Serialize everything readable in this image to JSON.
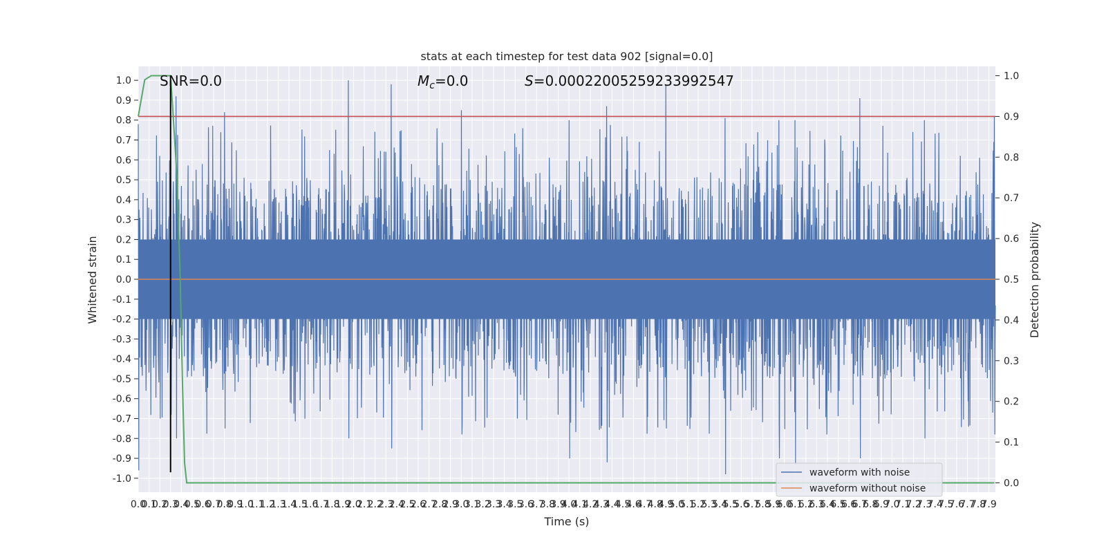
{
  "chart_data": {
    "type": "line",
    "title": "stats at each timestep for test data 902 [signal=0.0]",
    "xlabel": "Time (s)",
    "ylabel": "Whitened strain",
    "y2label": "Detection probability",
    "xlim": [
      0.0,
      7.96
    ],
    "ylim": [
      -1.07,
      1.07
    ],
    "y2lim": [
      -0.023,
      1.023
    ],
    "x_ticks": [
      0.0,
      0.1,
      0.2,
      0.3,
      0.4,
      0.5,
      0.6,
      0.7,
      0.8,
      0.9,
      1.0,
      1.1,
      1.2,
      1.3,
      1.4,
      1.5,
      1.6,
      1.7,
      1.8,
      1.9,
      2.0,
      2.1,
      2.2,
      2.3,
      2.4,
      2.5,
      2.6,
      2.7,
      2.8,
      2.9,
      3.0,
      3.1,
      3.2,
      3.3,
      3.4,
      3.5,
      3.6,
      3.7,
      3.8,
      3.9,
      4.0,
      4.1,
      4.2,
      4.3,
      4.4,
      4.5,
      4.6,
      4.7,
      4.8,
      4.9,
      5.0,
      5.1,
      5.2,
      5.3,
      5.4,
      5.5,
      5.6,
      5.7,
      5.8,
      5.9,
      6.0,
      6.1,
      6.2,
      6.3,
      6.4,
      6.5,
      6.6,
      6.7,
      6.8,
      6.9,
      7.0,
      7.1,
      7.2,
      7.3,
      7.4,
      7.5,
      7.6,
      7.7,
      7.8,
      7.9
    ],
    "x_tick_labels": [
      "0.0",
      "0.1",
      "0.2",
      "0.3",
      "0.4",
      "0.5",
      "0.6",
      "0.7",
      "0.8",
      "0.9",
      "1.0",
      "1.1",
      "1.2",
      "1.3",
      "1.4",
      "1.5",
      "1.6",
      "1.7",
      "1.8",
      "1.9",
      "2.0",
      "2.1",
      "2.2",
      "2.3",
      "2.4",
      "2.5",
      "2.6",
      "2.7",
      "2.8",
      "2.9",
      "3.0",
      "3.1",
      "3.2",
      "3.3",
      "3.4",
      "3.5",
      "3.6",
      "3.7",
      "3.8",
      "3.9",
      "4.0",
      "4.1",
      "4.2",
      "4.3",
      "4.4",
      "4.5",
      "4.6",
      "4.7",
      "4.8",
      "4.9",
      "5.0",
      "5.1",
      "5.2",
      "5.3",
      "5.4",
      "5.5",
      "5.6",
      "5.7",
      "5.8",
      "5.9",
      "6.0",
      "6.1",
      "6.2",
      "6.3",
      "6.4",
      "6.5",
      "6.6",
      "6.7",
      "6.8",
      "6.9",
      "7.0",
      "7.1",
      "7.2",
      "7.3",
      "7.4",
      "7.5",
      "7.6",
      "7.7",
      "7.8",
      "7.9"
    ],
    "y_ticks": [
      1.0,
      0.9,
      0.8,
      0.7,
      0.6,
      0.5,
      0.4,
      0.3,
      0.2,
      0.1,
      0.0,
      -0.1,
      -0.2,
      -0.3,
      -0.4,
      -0.5,
      -0.6,
      -0.7,
      -0.8,
      -0.9,
      -1.0
    ],
    "y_tick_labels": [
      "1.0",
      "0.9",
      "0.8",
      "0.7",
      "0.6",
      "0.5",
      "0.4",
      "0.3",
      "0.2",
      "0.1",
      "0.0",
      "-0.1",
      "-0.2",
      "-0.3",
      "-0.4",
      "-0.5",
      "-0.6",
      "-0.7",
      "-0.8",
      "-0.9",
      "-1.0"
    ],
    "y2_ticks": [
      1.0,
      0.9,
      0.8,
      0.7,
      0.6,
      0.5,
      0.4,
      0.3,
      0.2,
      0.1,
      0.0
    ],
    "y2_tick_labels": [
      "1.0",
      "0.9",
      "0.8",
      "0.7",
      "0.6",
      "0.5",
      "0.4",
      "0.3",
      "0.2",
      "0.1",
      "0.0"
    ],
    "grid": true,
    "legend_position": "bottom-right",
    "annotations": {
      "snr": "SNR=0.0",
      "mc_symbol": "M",
      "mc_sub": "c",
      "mc_value": "=0.0",
      "s_symbol": "S",
      "s_value": "=0.0002200525923399254​7"
    },
    "series": [
      {
        "name": "waveform with noise",
        "axis": "left",
        "color": "#4c72b0",
        "description_of_trace": "dense noise, band roughly -0.4 to 0.4 with spikes up to about ±1.0",
        "envelope_samples": {
          "x": [
            0.0,
            0.2,
            0.3,
            0.35,
            0.8,
            1.95,
            2.35,
            3.0,
            4.0,
            4.35,
            4.9,
            5.45,
            5.95,
            6.1,
            6.7,
            7.3,
            7.95
          ],
          "peak": [
            0.78,
            0.62,
            1.0,
            0.92,
            0.84,
            1.0,
            0.98,
            0.85,
            0.8,
            0.87,
            0.98,
            0.81,
            0.8,
            0.8,
            0.91,
            0.8,
            0.82
          ],
          "trough": [
            -0.96,
            -0.7,
            -0.68,
            -0.8,
            -0.75,
            -0.8,
            -0.85,
            -0.78,
            -0.9,
            -0.92,
            -0.75,
            -0.98,
            -0.9,
            -0.93,
            -0.9,
            -0.8,
            -0.78
          ]
        }
      },
      {
        "name": "waveform without noise",
        "axis": "left",
        "color": "#dd8452",
        "x": [
          0.0,
          7.96
        ],
        "y": [
          0.0,
          0.0
        ]
      },
      {
        "name": "",
        "axis": "right",
        "color": "#55a868",
        "x": [
          0.0,
          0.06,
          0.12,
          0.2,
          0.3,
          0.32,
          0.36,
          0.39,
          0.41,
          0.43,
          0.45,
          7.95
        ],
        "y": [
          0.9,
          0.99,
          1.0,
          1.0,
          1.0,
          0.92,
          0.75,
          0.5,
          0.25,
          0.05,
          0.0,
          0.0
        ]
      }
    ],
    "reference_lines": [
      {
        "orientation": "horizontal",
        "axis": "right",
        "value": 0.9,
        "color": "#c44e52"
      },
      {
        "orientation": "vertical",
        "value": 0.3,
        "color": "#000000",
        "y_from": -0.97,
        "y_to": 1.0
      }
    ],
    "colors": {
      "background": "#eaeaf2",
      "grid": "#ffffff",
      "noise": "#4c72b0",
      "clean": "#dd8452",
      "probability": "#55a868",
      "threshold": "#c44e52",
      "marker": "#000000"
    }
  }
}
